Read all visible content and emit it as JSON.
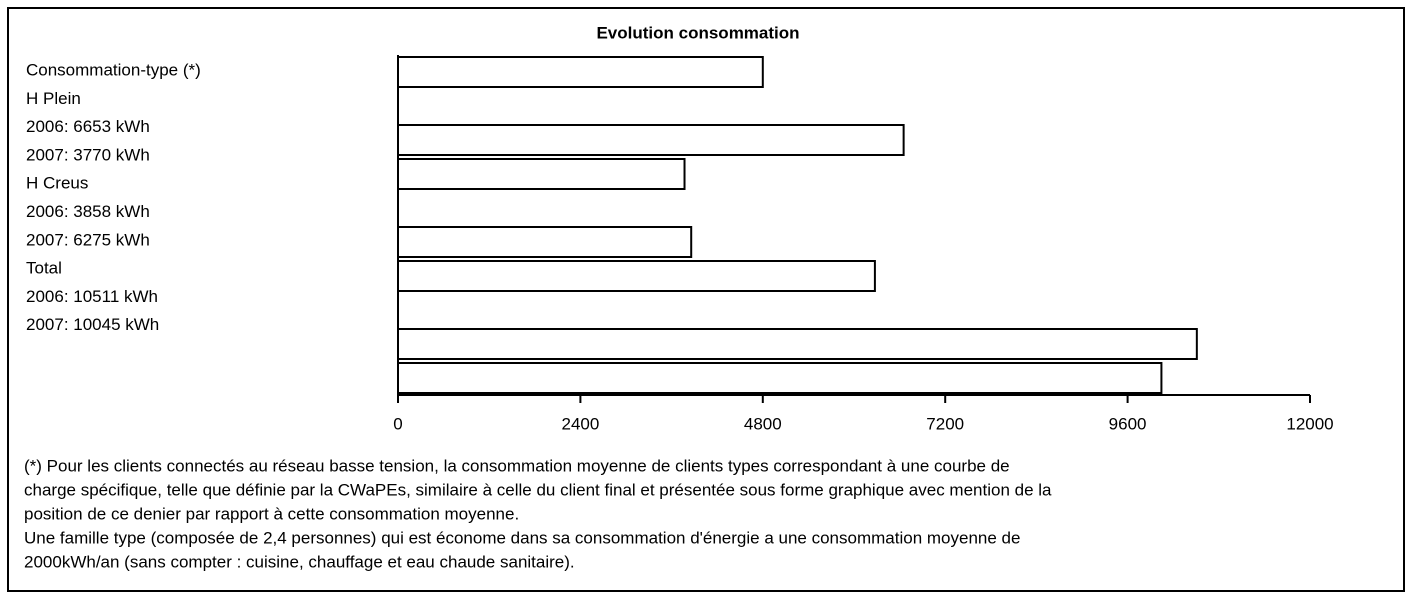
{
  "chart_data": {
    "type": "bar",
    "orientation": "horizontal",
    "title": "Evolution consommation",
    "categories": [
      "Consommation-type (*)",
      "H Plein",
      "2006: 6653 kWh",
      "2007: 3770 kWh",
      "H Creus",
      "2006: 3858 kWh",
      "2007: 6275 kWh",
      "Total",
      "2006: 10511 kWh",
      "2007: 10045 kWh"
    ],
    "values": [
      4800,
      null,
      6653,
      3770,
      null,
      3858,
      6275,
      null,
      10511,
      10045
    ],
    "color": "#ffffff",
    "xlim": [
      0,
      12000
    ],
    "xticks": [
      0,
      2400,
      4800,
      7200,
      9600,
      12000
    ],
    "grid": false,
    "notes": [
      "(*) Pour les clients connectés au réseau basse tension, la consommation moyenne de clients types correspondant à une courbe de",
      "charge spécifique, telle que définie par la CWaPEs, similaire à celle du client final et présentée sous forme graphique avec mention de la",
      "position de ce denier par rapport à cette consommation moyenne.",
      "Une famille type (composée de 2,4 personnes) qui est économe dans sa consommation d'énergie a une consommation moyenne de",
      "2000kWh/an (sans compter : cuisine, chauffage et eau chaude sanitaire)."
    ]
  }
}
